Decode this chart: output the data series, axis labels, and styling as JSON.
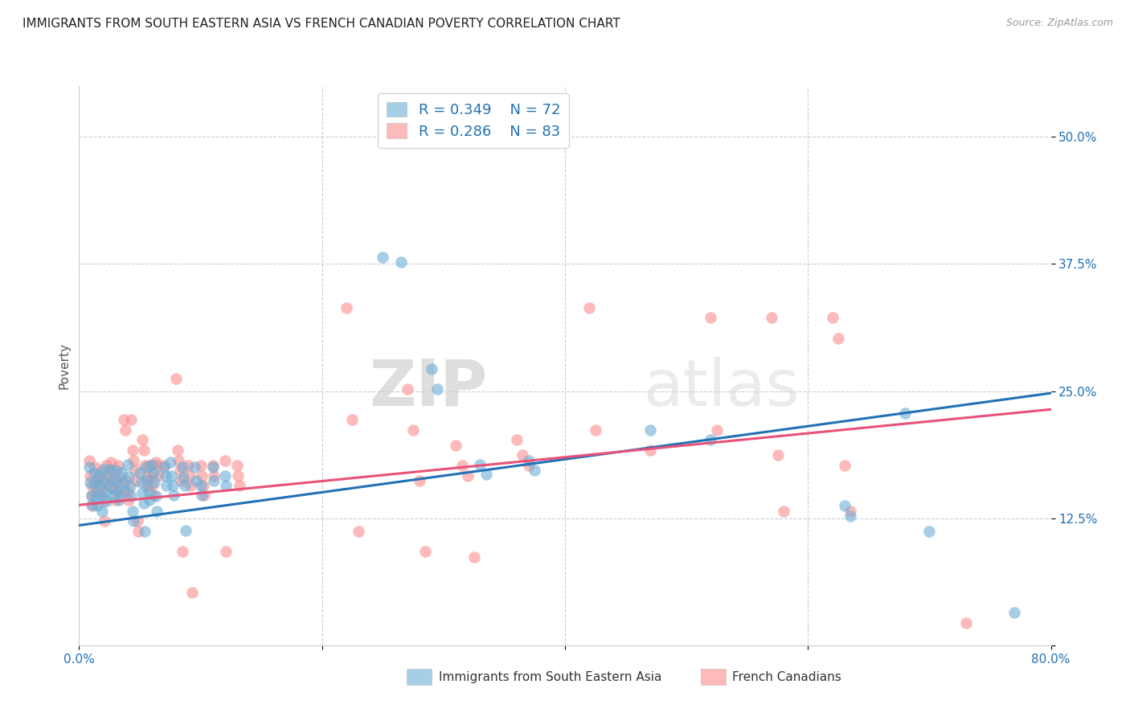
{
  "title": "IMMIGRANTS FROM SOUTH EASTERN ASIA VS FRENCH CANADIAN POVERTY CORRELATION CHART",
  "source": "Source: ZipAtlas.com",
  "ylabel": "Poverty",
  "xlim": [
    0.0,
    0.8
  ],
  "ylim": [
    0.0,
    0.55
  ],
  "x_ticks": [
    0.0,
    0.2,
    0.4,
    0.6,
    0.8
  ],
  "y_ticks": [
    0.0,
    0.125,
    0.25,
    0.375,
    0.5
  ],
  "y_tick_labels": [
    "",
    "12.5%",
    "25.0%",
    "37.5%",
    "50.0%"
  ],
  "blue_color": "#6baed6",
  "pink_color": "#fc8d8d",
  "blue_line_color": "#2171b5",
  "pink_line_color": "#e8527a",
  "watermark_zip": "ZIP",
  "watermark_atlas": "atlas",
  "title_fontsize": 11,
  "source_fontsize": 9,
  "blue_scatter": [
    [
      0.008,
      0.175
    ],
    [
      0.009,
      0.16
    ],
    [
      0.01,
      0.148
    ],
    [
      0.01,
      0.138
    ],
    [
      0.012,
      0.17
    ],
    [
      0.013,
      0.158
    ],
    [
      0.014,
      0.147
    ],
    [
      0.015,
      0.137
    ],
    [
      0.016,
      0.167
    ],
    [
      0.017,
      0.157
    ],
    [
      0.018,
      0.147
    ],
    [
      0.019,
      0.132
    ],
    [
      0.02,
      0.173
    ],
    [
      0.021,
      0.162
    ],
    [
      0.022,
      0.152
    ],
    [
      0.023,
      0.142
    ],
    [
      0.025,
      0.173
    ],
    [
      0.026,
      0.163
    ],
    [
      0.027,
      0.155
    ],
    [
      0.028,
      0.147
    ],
    [
      0.03,
      0.172
    ],
    [
      0.031,
      0.162
    ],
    [
      0.032,
      0.152
    ],
    [
      0.033,
      0.143
    ],
    [
      0.035,
      0.17
    ],
    [
      0.036,
      0.16
    ],
    [
      0.037,
      0.152
    ],
    [
      0.04,
      0.178
    ],
    [
      0.041,
      0.166
    ],
    [
      0.042,
      0.156
    ],
    [
      0.043,
      0.147
    ],
    [
      0.044,
      0.132
    ],
    [
      0.045,
      0.122
    ],
    [
      0.05,
      0.17
    ],
    [
      0.051,
      0.16
    ],
    [
      0.052,
      0.15
    ],
    [
      0.053,
      0.14
    ],
    [
      0.054,
      0.112
    ],
    [
      0.055,
      0.175
    ],
    [
      0.056,
      0.162
    ],
    [
      0.057,
      0.152
    ],
    [
      0.058,
      0.143
    ],
    [
      0.06,
      0.178
    ],
    [
      0.061,
      0.17
    ],
    [
      0.062,
      0.16
    ],
    [
      0.063,
      0.147
    ],
    [
      0.064,
      0.132
    ],
    [
      0.07,
      0.175
    ],
    [
      0.071,
      0.167
    ],
    [
      0.072,
      0.157
    ],
    [
      0.075,
      0.18
    ],
    [
      0.076,
      0.167
    ],
    [
      0.077,
      0.157
    ],
    [
      0.078,
      0.148
    ],
    [
      0.085,
      0.175
    ],
    [
      0.086,
      0.165
    ],
    [
      0.087,
      0.157
    ],
    [
      0.088,
      0.113
    ],
    [
      0.095,
      0.175
    ],
    [
      0.096,
      0.162
    ],
    [
      0.1,
      0.157
    ],
    [
      0.101,
      0.148
    ],
    [
      0.11,
      0.175
    ],
    [
      0.111,
      0.162
    ],
    [
      0.12,
      0.167
    ],
    [
      0.121,
      0.157
    ],
    [
      0.25,
      0.382
    ],
    [
      0.265,
      0.377
    ],
    [
      0.29,
      0.272
    ],
    [
      0.295,
      0.252
    ],
    [
      0.33,
      0.178
    ],
    [
      0.335,
      0.168
    ],
    [
      0.37,
      0.182
    ],
    [
      0.375,
      0.172
    ],
    [
      0.47,
      0.212
    ],
    [
      0.52,
      0.202
    ],
    [
      0.63,
      0.137
    ],
    [
      0.635,
      0.127
    ],
    [
      0.68,
      0.228
    ],
    [
      0.7,
      0.112
    ],
    [
      0.77,
      0.032
    ]
  ],
  "pink_scatter": [
    [
      0.008,
      0.182
    ],
    [
      0.009,
      0.167
    ],
    [
      0.01,
      0.157
    ],
    [
      0.01,
      0.147
    ],
    [
      0.011,
      0.137
    ],
    [
      0.013,
      0.175
    ],
    [
      0.014,
      0.162
    ],
    [
      0.015,
      0.152
    ],
    [
      0.017,
      0.17
    ],
    [
      0.018,
      0.162
    ],
    [
      0.019,
      0.152
    ],
    [
      0.02,
      0.142
    ],
    [
      0.021,
      0.122
    ],
    [
      0.022,
      0.177
    ],
    [
      0.023,
      0.167
    ],
    [
      0.024,
      0.157
    ],
    [
      0.026,
      0.18
    ],
    [
      0.027,
      0.172
    ],
    [
      0.028,
      0.162
    ],
    [
      0.029,
      0.153
    ],
    [
      0.03,
      0.143
    ],
    [
      0.032,
      0.177
    ],
    [
      0.033,
      0.167
    ],
    [
      0.034,
      0.157
    ],
    [
      0.035,
      0.148
    ],
    [
      0.037,
      0.222
    ],
    [
      0.038,
      0.212
    ],
    [
      0.039,
      0.162
    ],
    [
      0.04,
      0.152
    ],
    [
      0.041,
      0.143
    ],
    [
      0.043,
      0.222
    ],
    [
      0.044,
      0.192
    ],
    [
      0.045,
      0.182
    ],
    [
      0.046,
      0.172
    ],
    [
      0.047,
      0.162
    ],
    [
      0.048,
      0.122
    ],
    [
      0.049,
      0.112
    ],
    [
      0.052,
      0.202
    ],
    [
      0.053,
      0.192
    ],
    [
      0.054,
      0.177
    ],
    [
      0.055,
      0.167
    ],
    [
      0.056,
      0.157
    ],
    [
      0.058,
      0.177
    ],
    [
      0.059,
      0.167
    ],
    [
      0.06,
      0.157
    ],
    [
      0.061,
      0.148
    ],
    [
      0.063,
      0.18
    ],
    [
      0.064,
      0.177
    ],
    [
      0.065,
      0.167
    ],
    [
      0.07,
      0.177
    ],
    [
      0.08,
      0.262
    ],
    [
      0.081,
      0.192
    ],
    [
      0.082,
      0.182
    ],
    [
      0.083,
      0.172
    ],
    [
      0.084,
      0.162
    ],
    [
      0.085,
      0.092
    ],
    [
      0.09,
      0.177
    ],
    [
      0.091,
      0.167
    ],
    [
      0.092,
      0.157
    ],
    [
      0.093,
      0.052
    ],
    [
      0.1,
      0.177
    ],
    [
      0.101,
      0.167
    ],
    [
      0.102,
      0.157
    ],
    [
      0.103,
      0.148
    ],
    [
      0.11,
      0.177
    ],
    [
      0.111,
      0.167
    ],
    [
      0.12,
      0.182
    ],
    [
      0.121,
      0.092
    ],
    [
      0.13,
      0.177
    ],
    [
      0.131,
      0.167
    ],
    [
      0.132,
      0.157
    ],
    [
      0.22,
      0.332
    ],
    [
      0.225,
      0.222
    ],
    [
      0.23,
      0.112
    ],
    [
      0.27,
      0.252
    ],
    [
      0.275,
      0.212
    ],
    [
      0.28,
      0.162
    ],
    [
      0.285,
      0.092
    ],
    [
      0.31,
      0.197
    ],
    [
      0.315,
      0.177
    ],
    [
      0.32,
      0.167
    ],
    [
      0.325,
      0.087
    ],
    [
      0.36,
      0.202
    ],
    [
      0.365,
      0.187
    ],
    [
      0.37,
      0.177
    ],
    [
      0.42,
      0.332
    ],
    [
      0.425,
      0.212
    ],
    [
      0.47,
      0.192
    ],
    [
      0.52,
      0.322
    ],
    [
      0.525,
      0.212
    ],
    [
      0.57,
      0.322
    ],
    [
      0.575,
      0.187
    ],
    [
      0.58,
      0.132
    ],
    [
      0.62,
      0.322
    ],
    [
      0.625,
      0.302
    ],
    [
      0.63,
      0.177
    ],
    [
      0.635,
      0.132
    ],
    [
      0.73,
      0.022
    ]
  ],
  "blue_line_x": [
    0.0,
    0.8
  ],
  "blue_line_y": [
    0.118,
    0.248
  ],
  "pink_line_x": [
    0.0,
    0.8
  ],
  "pink_line_y": [
    0.138,
    0.232
  ]
}
